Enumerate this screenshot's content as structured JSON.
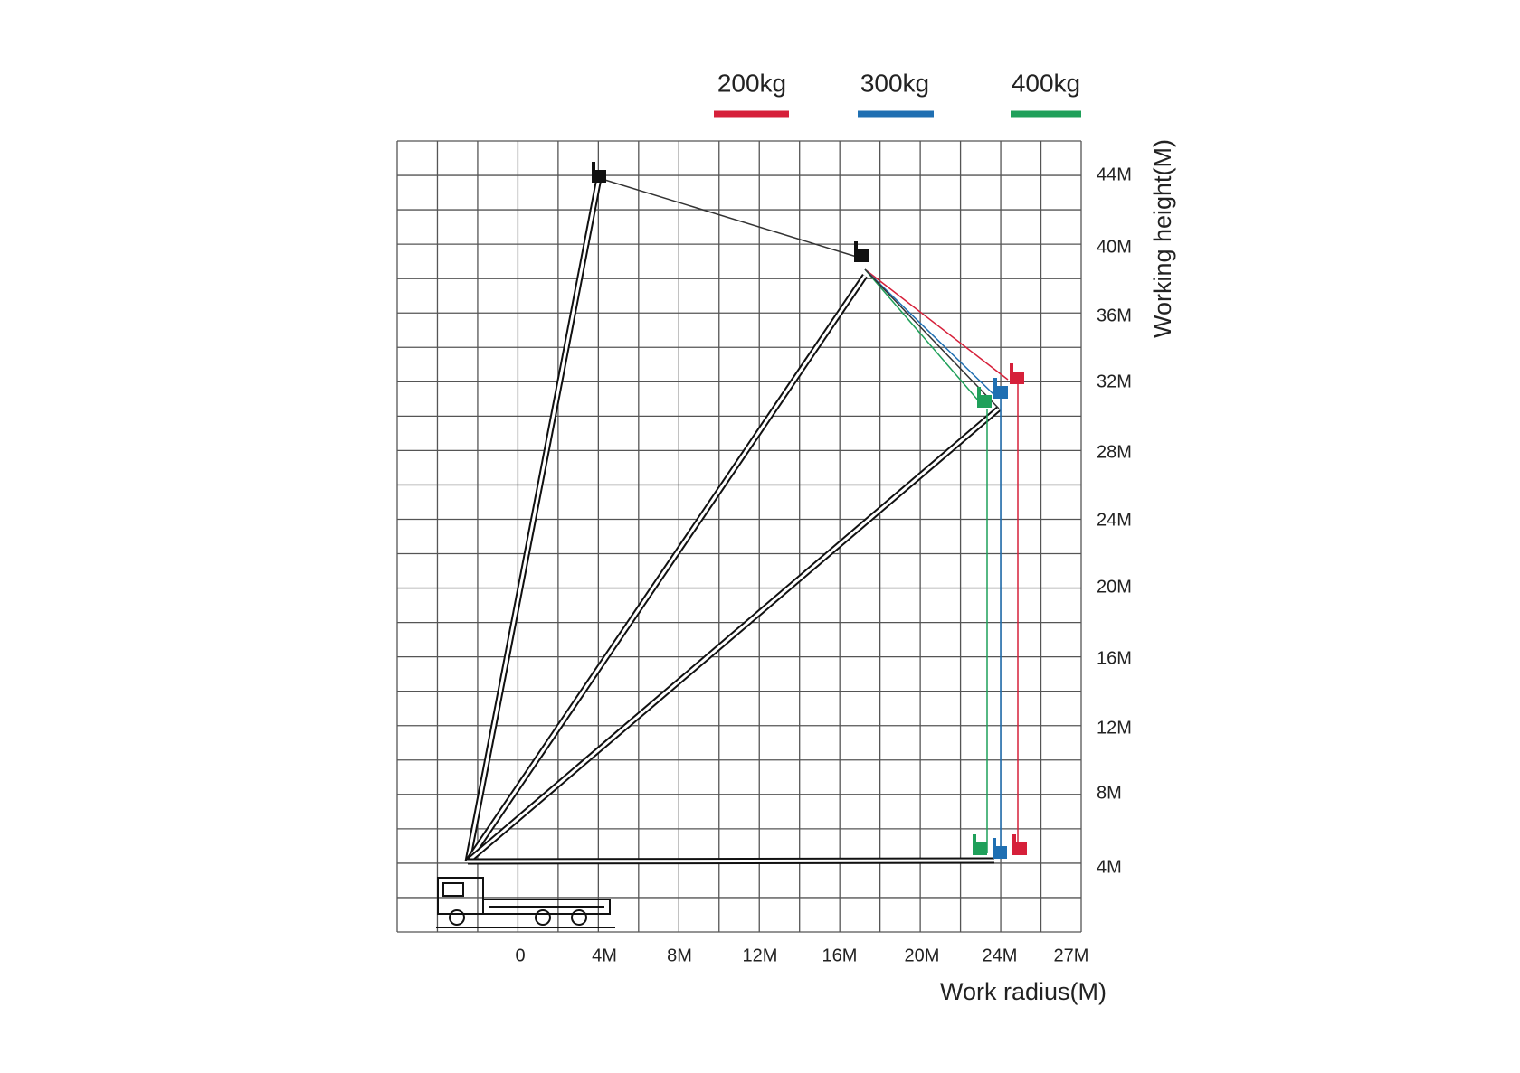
{
  "legend": [
    {
      "label": "200kg",
      "color": "#d6203a"
    },
    {
      "label": "300kg",
      "color": "#1f6fb2"
    },
    {
      "label": "400kg",
      "color": "#1fa05a"
    }
  ],
  "y_axis": {
    "title": "Working height(M)",
    "ticks": [
      "44M",
      "40M",
      "36M",
      "32M",
      "28M",
      "24M",
      "20M",
      "16M",
      "12M",
      "8M",
      "4M"
    ]
  },
  "x_axis": {
    "title": "Work radius(M)",
    "ticks": [
      "0",
      "4M",
      "8M",
      "12M",
      "16M",
      "20M",
      "24M",
      "27M"
    ]
  }
}
